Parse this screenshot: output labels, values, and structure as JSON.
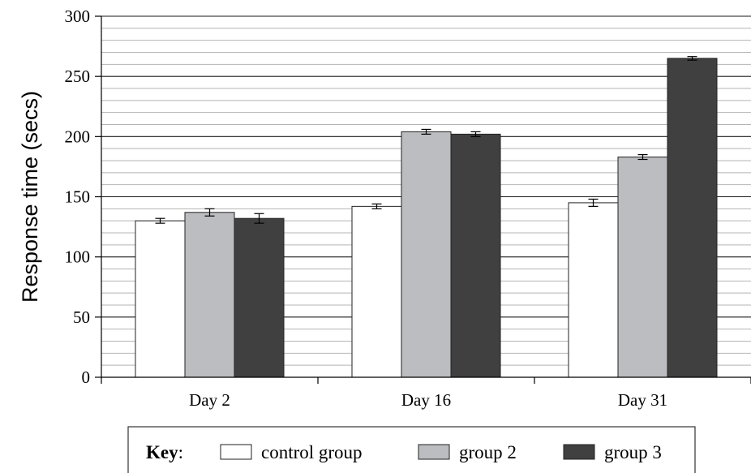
{
  "chart_data": {
    "type": "bar",
    "title": "",
    "xlabel": "",
    "ylabel": "Response time (secs)",
    "ylim": [
      0,
      300
    ],
    "yticks": [
      0,
      50,
      100,
      150,
      200,
      250,
      300
    ],
    "minor_grid_step": 10,
    "grid": true,
    "categories": [
      "Day 2",
      "Day 16",
      "Day 31"
    ],
    "series": [
      {
        "name": "control group",
        "values": [
          130,
          142,
          145
        ],
        "errors": [
          2,
          2,
          3
        ],
        "color": "#ffffff"
      },
      {
        "name": "group 2",
        "values": [
          137,
          204,
          183
        ],
        "errors": [
          3,
          2,
          2
        ],
        "color": "#bcbdc0"
      },
      {
        "name": "group 3",
        "values": [
          132,
          202,
          265
        ],
        "errors": [
          4,
          2,
          1.5
        ],
        "color": "#404040"
      }
    ],
    "legend": {
      "title": "Key",
      "separator": ":",
      "position": "bottom"
    }
  }
}
